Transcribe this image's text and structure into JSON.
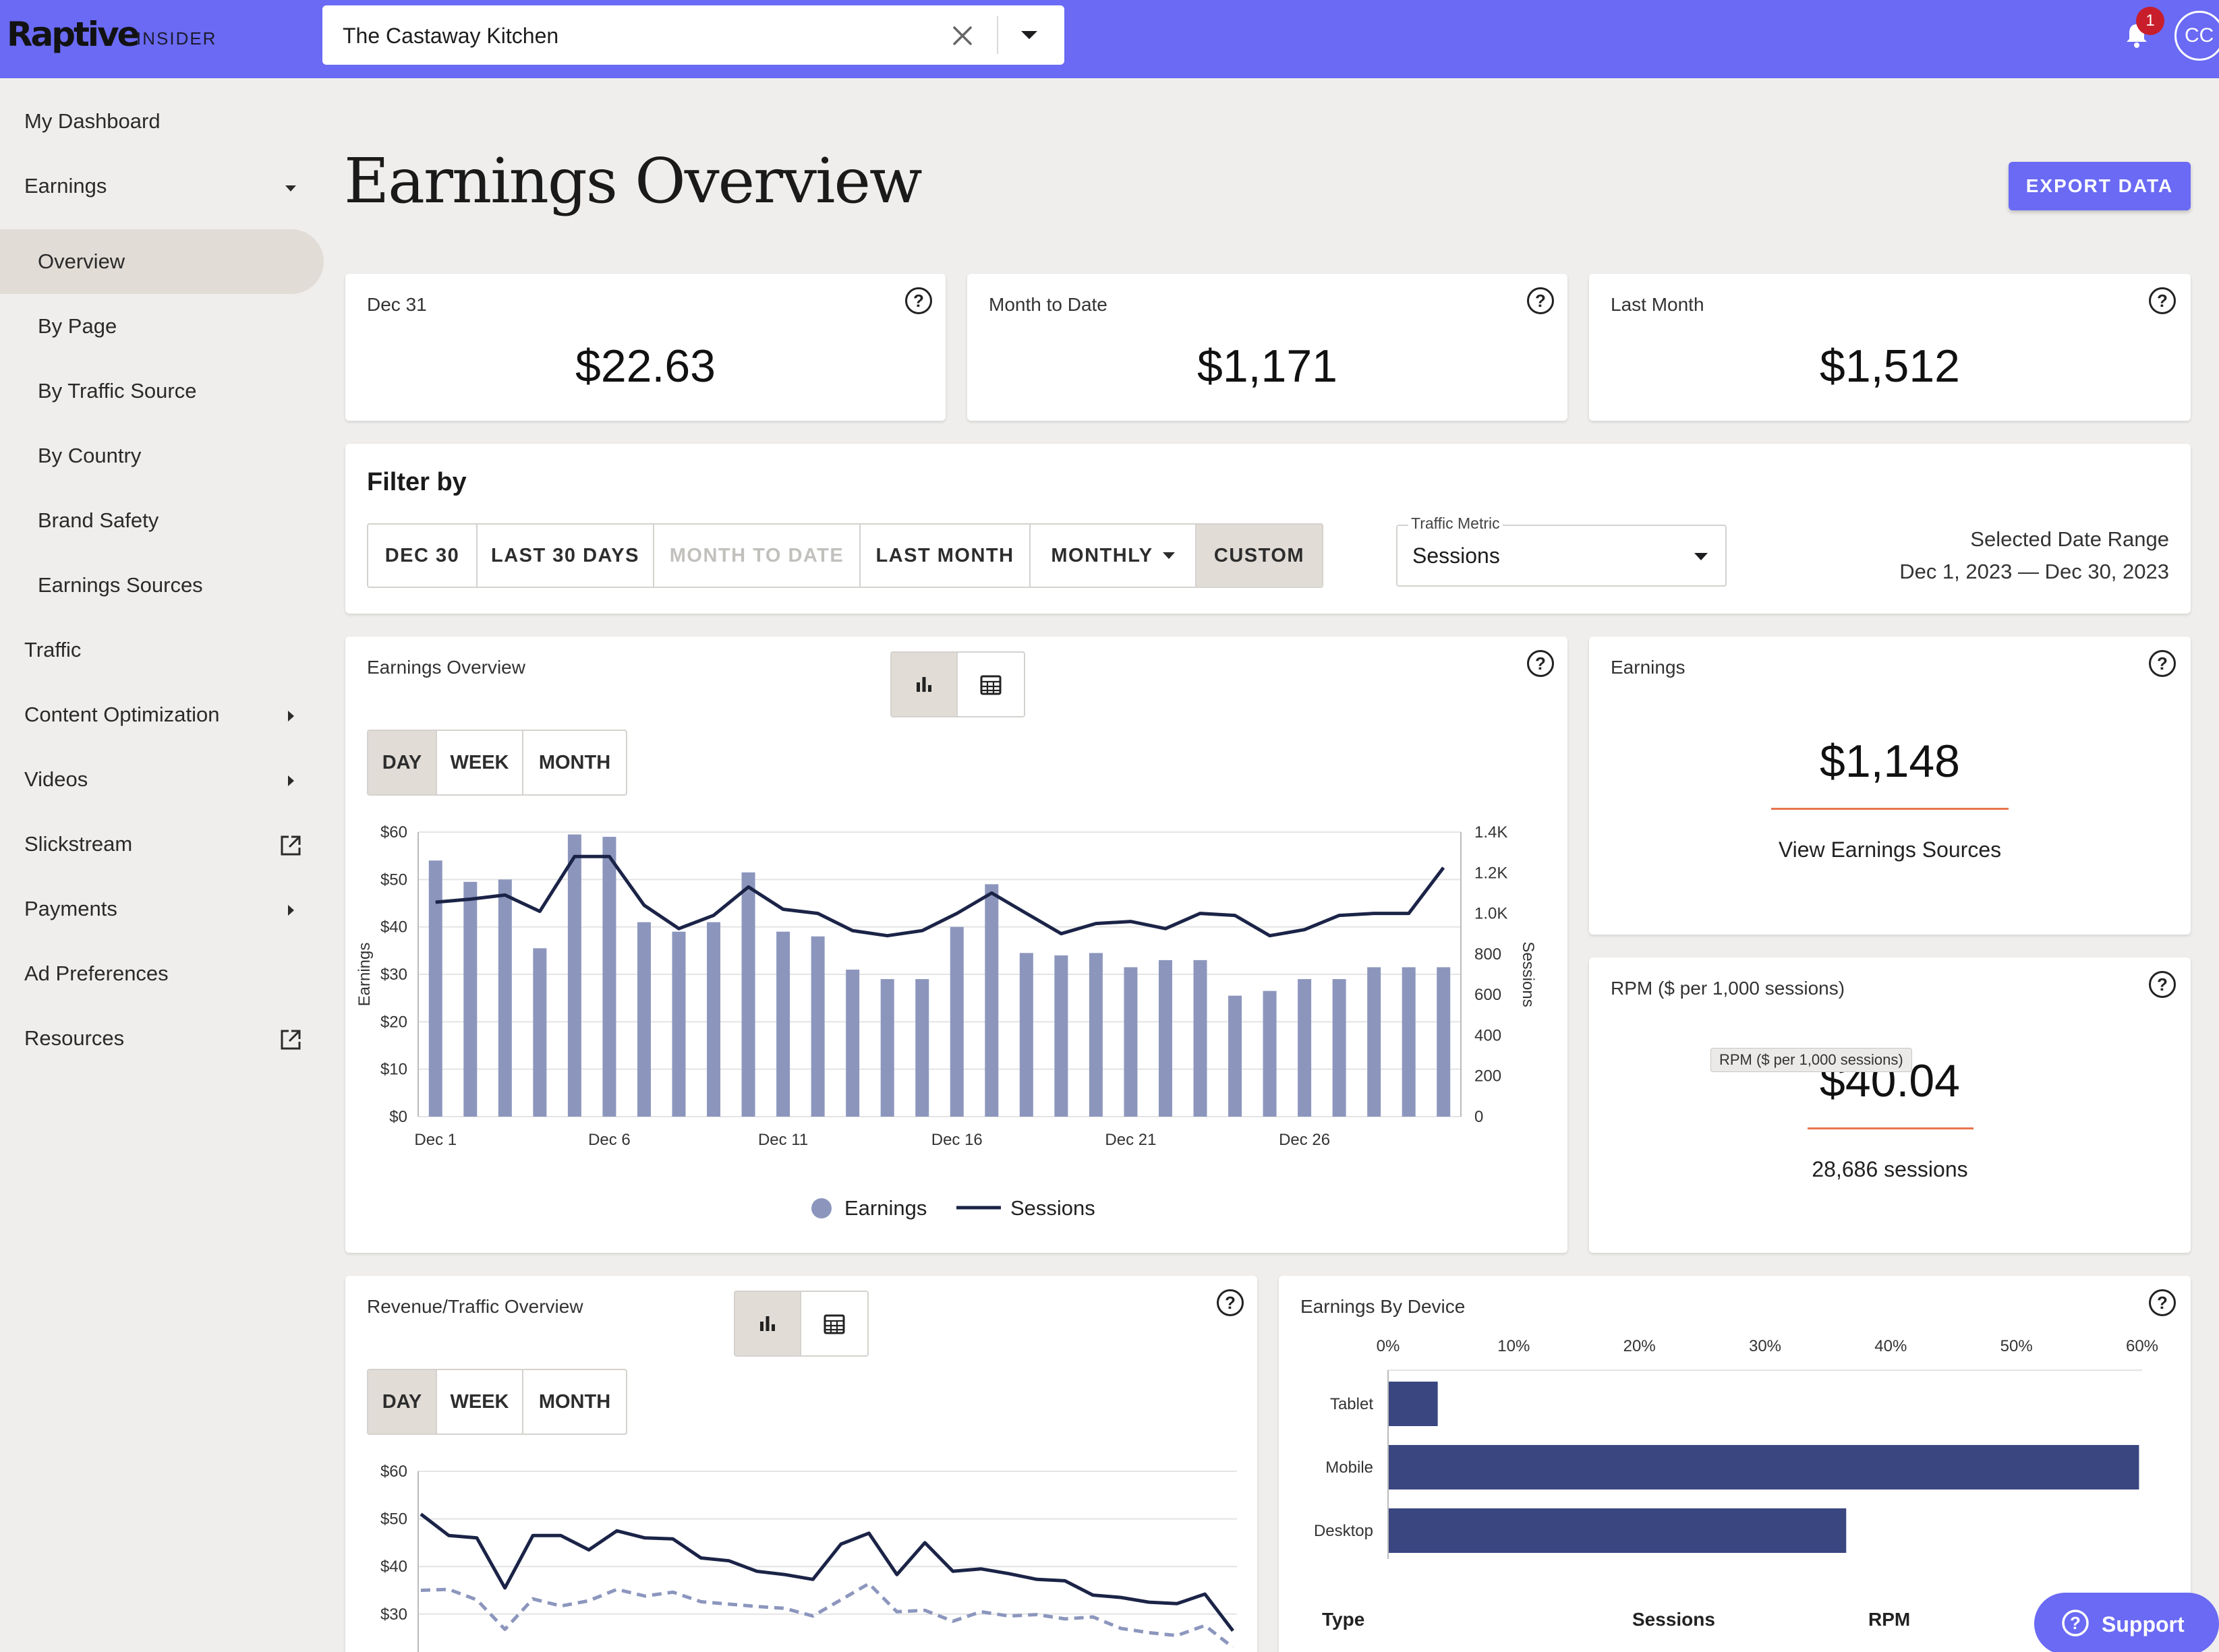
{
  "topbar": {
    "logo": "Raptive",
    "logo_sub": "INSIDER",
    "site": "The Castaway Kitchen",
    "notification_count": "1",
    "avatar_initials": "CC"
  },
  "sidebar": {
    "items": [
      {
        "label": "My Dashboard"
      },
      {
        "label": "Earnings"
      },
      {
        "label": "Overview"
      },
      {
        "label": "By Page"
      },
      {
        "label": "By Traffic Source"
      },
      {
        "label": "By Country"
      },
      {
        "label": "Brand Safety"
      },
      {
        "label": "Earnings Sources"
      },
      {
        "label": "Traffic"
      },
      {
        "label": "Content Optimization"
      },
      {
        "label": "Videos"
      },
      {
        "label": "Slickstream"
      },
      {
        "label": "Payments"
      },
      {
        "label": "Ad Preferences"
      },
      {
        "label": "Resources"
      }
    ]
  },
  "header": {
    "title": "Earnings Overview",
    "export_label": "EXPORT DATA"
  },
  "summary": [
    {
      "label": "Dec 31",
      "value": "$22.63"
    },
    {
      "label": "Month to Date",
      "value": "$1,171"
    },
    {
      "label": "Last Month",
      "value": "$1,512"
    }
  ],
  "filter": {
    "title": "Filter by",
    "buttons": [
      "DEC 30",
      "LAST 30 DAYS",
      "MONTH TO DATE",
      "LAST MONTH",
      "MONTHLY",
      "CUSTOM"
    ],
    "metric_label": "Traffic Metric",
    "metric_value": "Sessions",
    "range_label": "Selected Date Range",
    "range_value": "Dec 1, 2023 — Dec 30, 2023"
  },
  "earnings_chart_card": {
    "title": "Earnings Overview",
    "tabs": [
      "DAY",
      "WEEK",
      "MONTH"
    ],
    "legend": [
      "Earnings",
      "Sessions"
    ]
  },
  "earnings_card": {
    "label": "Earnings",
    "value": "$1,148",
    "link": "View Earnings Sources"
  },
  "rpm_card": {
    "label": "RPM ($ per 1,000 sessions)",
    "value": "$40.04",
    "tooltip": "RPM ($ per 1,000 sessions)",
    "sub": "28,686 sessions"
  },
  "revenue_card": {
    "title": "Revenue/Traffic Overview",
    "tabs": [
      "DAY",
      "WEEK",
      "MONTH"
    ]
  },
  "device_card": {
    "title": "Earnings By Device",
    "table_headers": [
      "Type",
      "Sessions",
      "RPM"
    ]
  },
  "support_label": "Support",
  "colors": {
    "accent": "#6a6af4",
    "bar": "#8c96bd",
    "line": "#1b2447",
    "device_bar": "#3a4680",
    "underline": "#e8744d"
  },
  "chart_data": [
    {
      "type": "bar",
      "title": "Earnings Overview",
      "x": [
        "Dec 1",
        "Dec 2",
        "Dec 3",
        "Dec 4",
        "Dec 5",
        "Dec 6",
        "Dec 7",
        "Dec 8",
        "Dec 9",
        "Dec 10",
        "Dec 11",
        "Dec 12",
        "Dec 13",
        "Dec 14",
        "Dec 15",
        "Dec 16",
        "Dec 17",
        "Dec 18",
        "Dec 19",
        "Dec 20",
        "Dec 21",
        "Dec 22",
        "Dec 23",
        "Dec 24",
        "Dec 25",
        "Dec 26",
        "Dec 27",
        "Dec 28",
        "Dec 29",
        "Dec 30"
      ],
      "xticks": [
        "Dec 1",
        "Dec 6",
        "Dec 11",
        "Dec 16",
        "Dec 21",
        "Dec 26"
      ],
      "series": [
        {
          "name": "Earnings",
          "axis": "left",
          "type": "bar",
          "values": [
            54,
            49.5,
            50,
            35.5,
            59.5,
            59,
            41,
            39,
            41,
            51.5,
            39,
            38,
            31,
            29,
            29,
            40,
            49,
            34.5,
            34,
            34.5,
            31.5,
            33,
            33,
            25.5,
            26.5,
            29,
            29,
            31.5,
            31.5,
            31.5
          ]
        },
        {
          "name": "Sessions",
          "axis": "right",
          "type": "line",
          "values": [
            1055,
            1070,
            1090,
            1010,
            1280,
            1280,
            1040,
            925,
            990,
            1130,
            1020,
            1000,
            915,
            890,
            915,
            1000,
            1100,
            1000,
            900,
            950,
            960,
            925,
            1000,
            990,
            890,
            920,
            990,
            1000,
            1000,
            1225
          ]
        }
      ],
      "ylabel": "Earnings",
      "y2label": "Sessions",
      "ylim": [
        0,
        60
      ],
      "y2lim": [
        0,
        1400
      ],
      "yticks": [
        "$0",
        "$10",
        "$20",
        "$30",
        "$40",
        "$50",
        "$60"
      ],
      "y2ticks": [
        "0",
        "200",
        "400",
        "600",
        "800",
        "1.0K",
        "1.2K",
        "1.4K"
      ],
      "grid": true,
      "legend": "bottom"
    },
    {
      "type": "line",
      "title": "Revenue/Traffic Overview",
      "series": [
        {
          "name": "",
          "style": "solid",
          "values": [
            51,
            46.5,
            46,
            35.5,
            46.5,
            46.5,
            43.5,
            47.5,
            46,
            45.8,
            41.8,
            41.2,
            39,
            38.3,
            37.3,
            44.7,
            47,
            38.3,
            45,
            39,
            39.5,
            38.5,
            37.3,
            37,
            34,
            33.5,
            32.5,
            32.2,
            34.2,
            26.5
          ]
        },
        {
          "name": "",
          "style": "dashed",
          "values": [
            35,
            35.2,
            33,
            26.8,
            33.2,
            31.7,
            32.8,
            35.2,
            33.8,
            34.6,
            32.6,
            32.1,
            31.6,
            31.2,
            29.6,
            33,
            36.4,
            30.5,
            30.8,
            28.5,
            30.5,
            29.6,
            29.9,
            29,
            29.4,
            27,
            26.1,
            25.5,
            27.6,
            23
          ]
        }
      ],
      "yticks": [
        "$30",
        "$40",
        "$50",
        "$60"
      ],
      "ylim": [
        20,
        60
      ],
      "grid": true
    },
    {
      "type": "bar",
      "orientation": "horizontal",
      "title": "Earnings By Device",
      "categories": [
        "Tablet",
        "Mobile",
        "Desktop"
      ],
      "values": [
        3.9,
        59.7,
        36.4
      ],
      "xticks": [
        "0%",
        "10%",
        "20%",
        "30%",
        "40%",
        "50%",
        "60%"
      ],
      "xlim": [
        0,
        60
      ]
    }
  ]
}
